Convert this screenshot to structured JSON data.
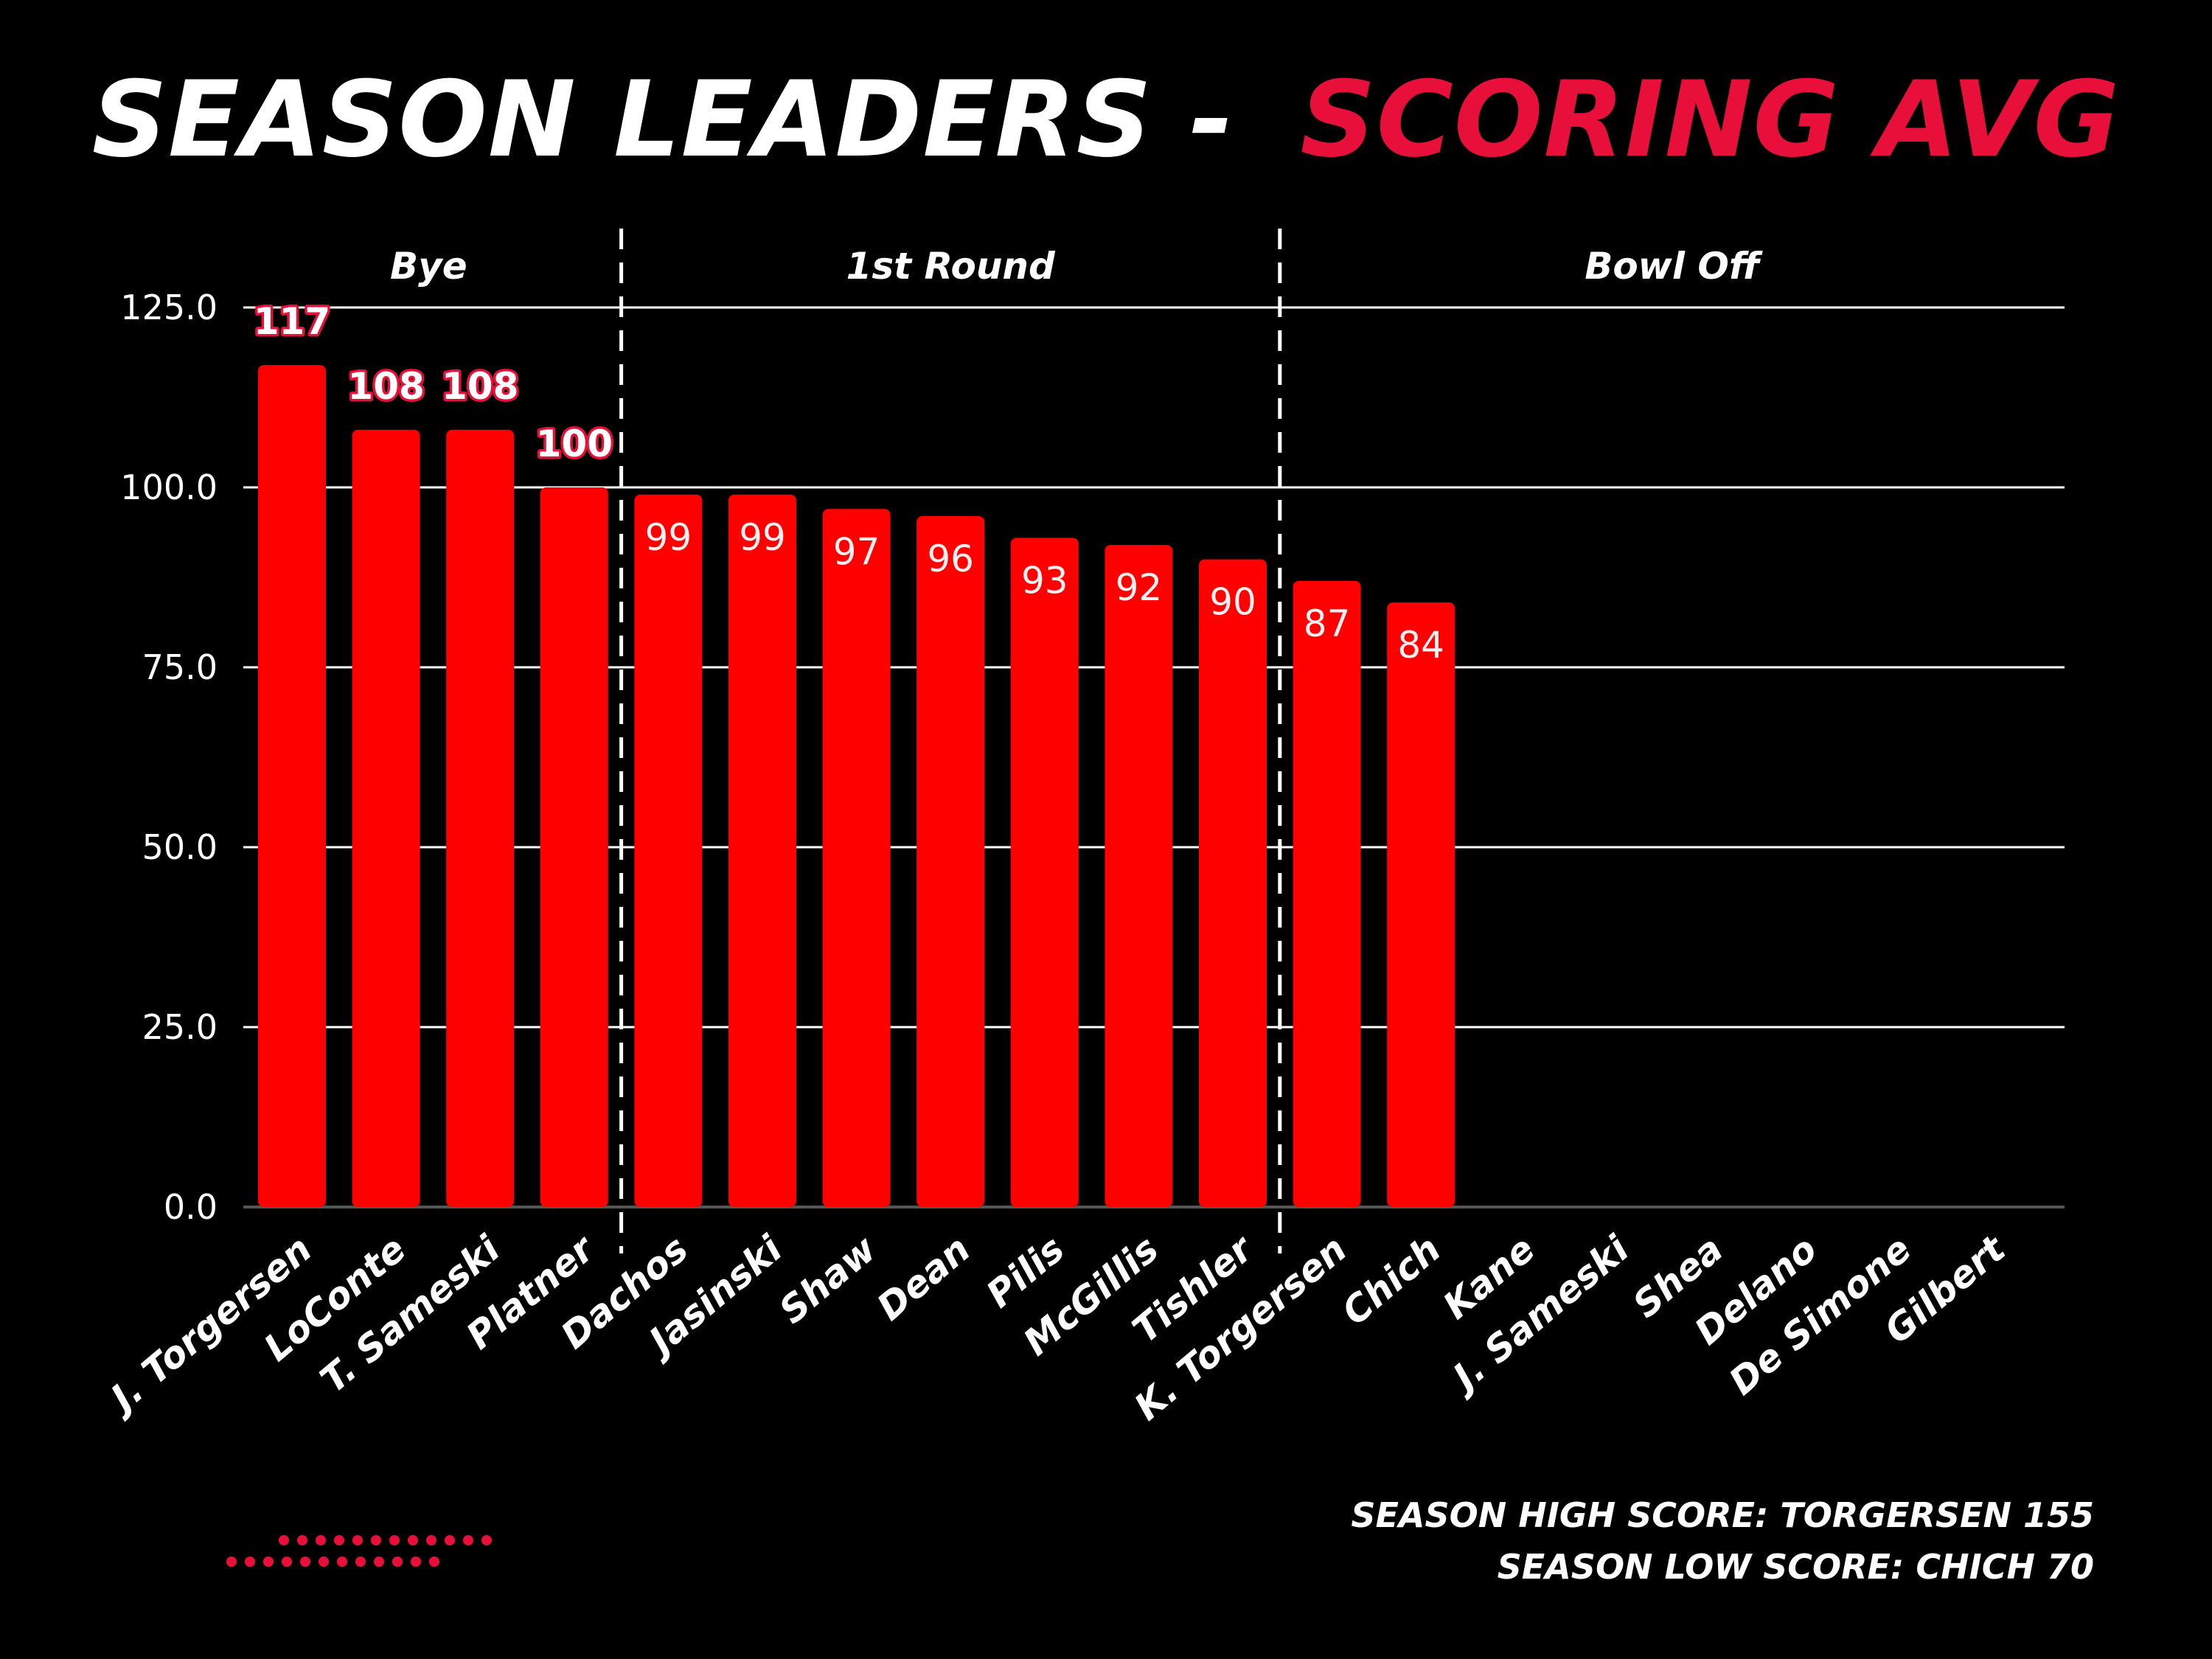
{
  "title": {
    "main": "SEASON LEADERS -",
    "accent": "SCORING AVG"
  },
  "colors": {
    "background": "#000000",
    "bar": "#ff0000",
    "accent": "#e8103a",
    "text": "#ffffff",
    "grid": "#ffffff"
  },
  "chart_data": {
    "type": "bar",
    "title": "SEASON LEADERS - SCORING AVG",
    "xlabel": "",
    "ylabel": "",
    "ylim": [
      0,
      125
    ],
    "yticks": [
      "0.0",
      "25.0",
      "50.0",
      "75.0",
      "100.0",
      "125.0"
    ],
    "ytick_values": [
      0,
      25,
      50,
      75,
      100,
      125
    ],
    "grid": true,
    "categories": [
      "J. Torgersen",
      "LoConte",
      "T. Sameski",
      "Platner",
      "Dachos",
      "Jasinski",
      "Shaw",
      "Dean",
      "Pilis",
      "McGillis",
      "Tishler",
      "K. Torgersen",
      "Chich",
      "Kane",
      "J. Sameski",
      "Shea",
      "Delano",
      "De Simone",
      "Gilbert"
    ],
    "values": [
      117,
      108,
      108,
      100,
      99,
      99,
      97,
      96,
      93,
      92,
      90,
      87,
      84,
      null,
      null,
      null,
      null,
      null,
      null
    ],
    "data_labels": [
      "117",
      "108",
      "108",
      "100",
      "99",
      "99",
      "97",
      "96",
      "93",
      "92",
      "90",
      "87",
      "84",
      "",
      "",
      "",
      "",
      "",
      ""
    ],
    "label_outside_bar_count": 4,
    "groups": [
      {
        "label": "Bye",
        "start_index": 0,
        "end_index": 3
      },
      {
        "label": "1st Round",
        "start_index": 4,
        "end_index": 10
      },
      {
        "label": "Bowl Off",
        "start_index": 11,
        "end_index": 18
      }
    ]
  },
  "notes": {
    "high": "SEASON HIGH SCORE: TORGERSEN 155",
    "low": "SEASON LOW SCORE: CHICH 70"
  },
  "decoration": {
    "name": "red-dot-pattern-decoration"
  }
}
